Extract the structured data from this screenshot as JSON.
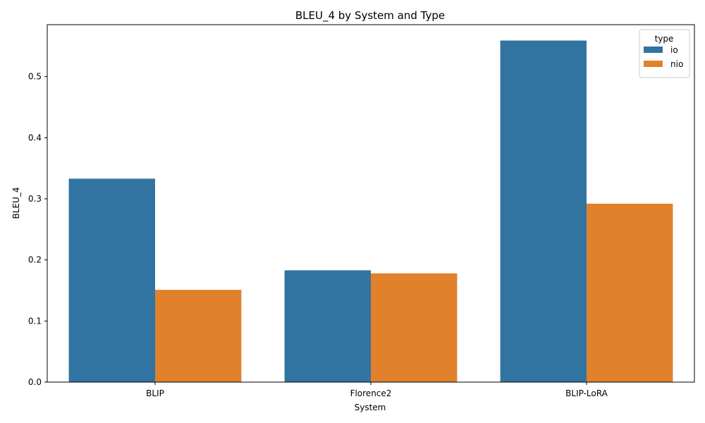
{
  "chart_data": {
    "type": "bar",
    "title": "BLEU_4 by System and Type",
    "xlabel": "System",
    "ylabel": "BLEU_4",
    "categories": [
      "BLIP",
      "Florence2",
      "BLIP-LoRA"
    ],
    "series": [
      {
        "name": "io",
        "color": "#3274a1",
        "values": [
          0.333,
          0.183,
          0.559
        ]
      },
      {
        "name": "nio",
        "color": "#e1812c",
        "values": [
          0.151,
          0.178,
          0.292
        ]
      }
    ],
    "ylim": [
      0,
      0.585
    ],
    "yticks": [
      0.0,
      0.1,
      0.2,
      0.3,
      0.4,
      0.5
    ],
    "ytick_labels": [
      "0.0",
      "0.1",
      "0.2",
      "0.3",
      "0.4",
      "0.5"
    ],
    "legend": {
      "title": "type",
      "position": "top-right"
    },
    "grid": false
  }
}
